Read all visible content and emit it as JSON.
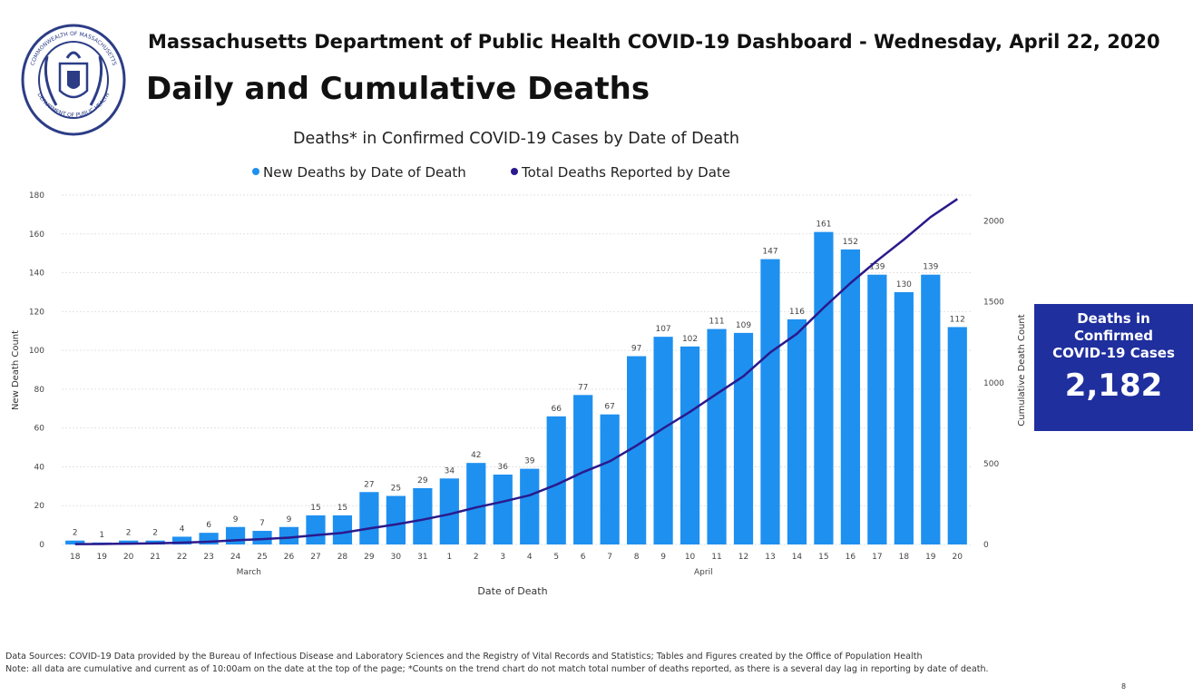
{
  "header": {
    "dashboard_line": "Massachusetts Department of Public Health COVID-19 Dashboard - Wednesday, April 22, 2020",
    "title": "Daily and Cumulative Deaths",
    "seal_text_top": "COMMONWEALTH OF MASSACHUSETTS",
    "seal_text_bottom": "DEPARTMENT OF PUBLIC HEALTH"
  },
  "chart_data": {
    "type": "bar",
    "title": "Deaths* in Confirmed COVID-19 Cases by Date of Death",
    "xlabel": "Date of Death",
    "ylabel": "New Death Count",
    "y2label": "Cumulative Death Count",
    "categories": [
      "18",
      "19",
      "20",
      "21",
      "22",
      "23",
      "24",
      "25",
      "26",
      "27",
      "28",
      "29",
      "30",
      "31",
      "1",
      "2",
      "3",
      "4",
      "5",
      "6",
      "7",
      "8",
      "9",
      "10",
      "11",
      "12",
      "13",
      "14",
      "15",
      "16",
      "17",
      "18",
      "19",
      "20"
    ],
    "month_labels": [
      {
        "label": "March",
        "center_index": 6.5
      },
      {
        "label": "April",
        "center_index": 23.5
      }
    ],
    "ylim": [
      0,
      180
    ],
    "yticks": [
      0,
      20,
      40,
      60,
      80,
      100,
      120,
      140,
      160,
      180
    ],
    "y2lim": [
      0,
      2160
    ],
    "y2ticks": [
      0,
      500,
      1000,
      1500,
      2000
    ],
    "legend_position": "top",
    "series": [
      {
        "name": "New Deaths by Date of Death",
        "type": "bar",
        "axis": "left",
        "color": "#1e90f0",
        "values": [
          2,
          1,
          2,
          2,
          4,
          6,
          9,
          7,
          9,
          15,
          15,
          27,
          25,
          29,
          34,
          42,
          36,
          39,
          66,
          77,
          67,
          97,
          107,
          102,
          111,
          109,
          147,
          116,
          161,
          152,
          139,
          130,
          139,
          112
        ]
      },
      {
        "name": "Total Deaths Reported by Date",
        "type": "line",
        "axis": "right",
        "color": "#2a1a8c",
        "values": [
          2,
          3,
          5,
          7,
          11,
          17,
          26,
          33,
          42,
          57,
          72,
          99,
          124,
          153,
          187,
          229,
          265,
          304,
          370,
          447,
          514,
          611,
          718,
          820,
          931,
          1040,
          1187,
          1303,
          1464,
          1616,
          1755,
          1885,
          2024,
          2136
        ]
      }
    ],
    "grid": true
  },
  "kpi": {
    "label": "Deaths in\nConfirmed\nCOVID-19 Cases",
    "value": "2,182"
  },
  "footer": {
    "sources": "Data Sources: COVID-19 Data provided by the Bureau of Infectious Disease and Laboratory Sciences and the Registry of Vital Records and Statistics; Tables and Figures created by the Office of Population Health",
    "note": "Note: all data are cumulative and current as of 10:00am on the date at the top of the page; *Counts on the trend chart do not match total number of deaths reported, as there is a several day lag in reporting by date of death.",
    "page_number": "8"
  },
  "colors": {
    "bar": "#1e90f0",
    "line": "#2a1a8c",
    "kpi_background": "#1f2f9e"
  }
}
